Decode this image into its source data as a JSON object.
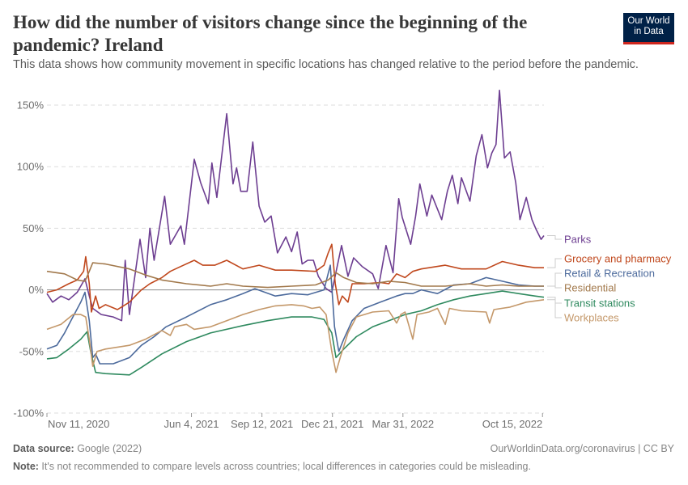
{
  "header": {
    "title": "How did the number of visitors change since the beginning of the pandemic? Ireland",
    "subtitle": "This data shows how community movement in specific locations has changed relative to the period before the pandemic.",
    "logo_line1": "Our World",
    "logo_line2": "in Data"
  },
  "footer": {
    "source_label": "Data source:",
    "source_text": " Google (2022)",
    "url_text": "OurWorldinData.org/coronavirus | CC BY",
    "note_label": "Note:",
    "note_text": " It's not recommended to compare levels across countries; local differences in categories could be misleading."
  },
  "chart_data": {
    "type": "line",
    "title": "How did the number of visitors change since the beginning of the pandemic? Ireland",
    "xlabel": "",
    "ylabel": "",
    "x_unit": "days since start_date",
    "start_date": "2020-11-11",
    "xlim": [
      0,
      705
    ],
    "ylim": [
      -100,
      150
    ],
    "y_ticks": [
      -100,
      -50,
      0,
      50,
      100,
      150
    ],
    "y_tick_labels": [
      "-100%",
      "-50%",
      "0%",
      "50%",
      "100%",
      "150%"
    ],
    "x_ticks": [
      0,
      205,
      305,
      405,
      505,
      703
    ],
    "x_tick_labels": [
      "Nov 11, 2020",
      "Jun 4, 2021",
      "Sep 12, 2021",
      "Dec 21, 2021",
      "Mar 31, 2022",
      "Oct 15, 2022"
    ],
    "grid": true,
    "legend_placement": "right (inline end labels)",
    "series": [
      {
        "name": "Parks",
        "color": "#6d3e91",
        "label_value": 44,
        "points": [
          [
            0,
            -3
          ],
          [
            8,
            -10
          ],
          [
            20,
            -5
          ],
          [
            31,
            -8
          ],
          [
            43,
            -2
          ],
          [
            54,
            9
          ],
          [
            60,
            -5
          ],
          [
            65,
            -15
          ],
          [
            77,
            -20
          ],
          [
            94,
            -22
          ],
          [
            106,
            -25
          ],
          [
            111,
            24
          ],
          [
            117,
            -20
          ],
          [
            132,
            41
          ],
          [
            140,
            10
          ],
          [
            146,
            50
          ],
          [
            152,
            24
          ],
          [
            167,
            76
          ],
          [
            175,
            37
          ],
          [
            190,
            52
          ],
          [
            195,
            37
          ],
          [
            209,
            106
          ],
          [
            218,
            87
          ],
          [
            229,
            70
          ],
          [
            234,
            103
          ],
          [
            241,
            75
          ],
          [
            255,
            143
          ],
          [
            264,
            86
          ],
          [
            269,
            99
          ],
          [
            275,
            80
          ],
          [
            284,
            80
          ],
          [
            292,
            120
          ],
          [
            301,
            68
          ],
          [
            309,
            55
          ],
          [
            318,
            60
          ],
          [
            327,
            30
          ],
          [
            339,
            43
          ],
          [
            347,
            31
          ],
          [
            355,
            47
          ],
          [
            362,
            21
          ],
          [
            370,
            24
          ],
          [
            378,
            24
          ],
          [
            385,
            11
          ],
          [
            396,
            1
          ],
          [
            404,
            -2
          ],
          [
            418,
            36
          ],
          [
            427,
            11
          ],
          [
            435,
            26
          ],
          [
            447,
            19
          ],
          [
            462,
            13
          ],
          [
            470,
            1
          ],
          [
            481,
            36
          ],
          [
            491,
            14
          ],
          [
            499,
            74
          ],
          [
            504,
            59
          ],
          [
            516,
            37
          ],
          [
            523,
            60
          ],
          [
            529,
            86
          ],
          [
            539,
            60
          ],
          [
            546,
            77
          ],
          [
            560,
            57
          ],
          [
            568,
            80
          ],
          [
            575,
            93
          ],
          [
            583,
            70
          ],
          [
            588,
            91
          ],
          [
            600,
            72
          ],
          [
            609,
            109
          ],
          [
            617,
            126
          ],
          [
            625,
            99
          ],
          [
            631,
            111
          ],
          [
            637,
            118
          ],
          [
            642,
            162
          ],
          [
            649,
            107
          ],
          [
            657,
            112
          ],
          [
            665,
            87
          ],
          [
            671,
            57
          ],
          [
            680,
            75
          ],
          [
            688,
            57
          ],
          [
            694,
            49
          ],
          [
            701,
            41
          ],
          [
            705,
            44
          ]
        ]
      },
      {
        "name": "Grocery and pharmacy",
        "color": "#c0481d",
        "label_value": 18,
        "points": [
          [
            0,
            -2
          ],
          [
            14,
            0
          ],
          [
            31,
            5
          ],
          [
            43,
            8
          ],
          [
            52,
            15
          ],
          [
            55,
            27
          ],
          [
            60,
            5
          ],
          [
            63,
            -18
          ],
          [
            69,
            -5
          ],
          [
            74,
            -15
          ],
          [
            83,
            -12
          ],
          [
            100,
            -16
          ],
          [
            117,
            -10
          ],
          [
            134,
            0
          ],
          [
            146,
            5
          ],
          [
            163,
            10
          ],
          [
            175,
            15
          ],
          [
            186,
            18
          ],
          [
            209,
            24
          ],
          [
            221,
            20
          ],
          [
            238,
            20
          ],
          [
            255,
            24
          ],
          [
            278,
            17
          ],
          [
            301,
            20
          ],
          [
            324,
            16
          ],
          [
            347,
            16
          ],
          [
            381,
            15
          ],
          [
            393,
            20
          ],
          [
            399,
            30
          ],
          [
            404,
            37
          ],
          [
            409,
            5
          ],
          [
            414,
            -12
          ],
          [
            419,
            -5
          ],
          [
            427,
            -10
          ],
          [
            433,
            5
          ],
          [
            450,
            5
          ],
          [
            473,
            6
          ],
          [
            485,
            5
          ],
          [
            496,
            13
          ],
          [
            508,
            10
          ],
          [
            519,
            15
          ],
          [
            531,
            17
          ],
          [
            565,
            20
          ],
          [
            588,
            17
          ],
          [
            623,
            17
          ],
          [
            646,
            23
          ],
          [
            669,
            20
          ],
          [
            692,
            18
          ],
          [
            705,
            18
          ]
        ]
      },
      {
        "name": "Retail & Recreation",
        "color": "#4c6a9c",
        "label_value": 3,
        "points": [
          [
            0,
            -48
          ],
          [
            14,
            -45
          ],
          [
            25,
            -35
          ],
          [
            34,
            -25
          ],
          [
            48,
            -10
          ],
          [
            54,
            -2
          ],
          [
            60,
            -25
          ],
          [
            65,
            -55
          ],
          [
            69,
            -52
          ],
          [
            75,
            -60
          ],
          [
            94,
            -60
          ],
          [
            117,
            -55
          ],
          [
            134,
            -45
          ],
          [
            152,
            -38
          ],
          [
            169,
            -30
          ],
          [
            198,
            -22
          ],
          [
            232,
            -12
          ],
          [
            255,
            -8
          ],
          [
            278,
            -3
          ],
          [
            295,
            1
          ],
          [
            324,
            -5
          ],
          [
            347,
            -3
          ],
          [
            370,
            -4
          ],
          [
            393,
            0
          ],
          [
            402,
            20
          ],
          [
            408,
            -30
          ],
          [
            414,
            -50
          ],
          [
            421,
            -40
          ],
          [
            433,
            -25
          ],
          [
            450,
            -15
          ],
          [
            473,
            -10
          ],
          [
            496,
            -5
          ],
          [
            508,
            -3
          ],
          [
            519,
            -3
          ],
          [
            531,
            0
          ],
          [
            554,
            -3
          ],
          [
            577,
            4
          ],
          [
            600,
            5
          ],
          [
            623,
            10
          ],
          [
            646,
            7
          ],
          [
            669,
            4
          ],
          [
            692,
            3
          ],
          [
            705,
            3
          ]
        ]
      },
      {
        "name": "Residential",
        "color": "#a2794c",
        "label_value": 3,
        "points": [
          [
            0,
            15
          ],
          [
            25,
            13
          ],
          [
            43,
            8
          ],
          [
            54,
            7
          ],
          [
            60,
            15
          ],
          [
            65,
            22
          ],
          [
            83,
            21
          ],
          [
            117,
            17
          ],
          [
            140,
            12
          ],
          [
            163,
            8
          ],
          [
            198,
            5
          ],
          [
            232,
            3
          ],
          [
            255,
            5
          ],
          [
            278,
            3
          ],
          [
            313,
            2
          ],
          [
            347,
            3
          ],
          [
            381,
            4
          ],
          [
            399,
            8
          ],
          [
            410,
            14
          ],
          [
            421,
            10
          ],
          [
            439,
            6
          ],
          [
            462,
            5
          ],
          [
            485,
            7
          ],
          [
            508,
            6
          ],
          [
            531,
            3
          ],
          [
            565,
            3
          ],
          [
            600,
            5
          ],
          [
            623,
            3
          ],
          [
            646,
            4
          ],
          [
            669,
            3
          ],
          [
            705,
            3
          ]
        ]
      },
      {
        "name": "Transit stations",
        "color": "#2f8a5f",
        "label_value": -6,
        "points": [
          [
            0,
            -56
          ],
          [
            14,
            -55
          ],
          [
            31,
            -48
          ],
          [
            48,
            -40
          ],
          [
            57,
            -34
          ],
          [
            62,
            -50
          ],
          [
            69,
            -67
          ],
          [
            83,
            -68
          ],
          [
            117,
            -69
          ],
          [
            134,
            -63
          ],
          [
            163,
            -52
          ],
          [
            198,
            -42
          ],
          [
            232,
            -35
          ],
          [
            278,
            -29
          ],
          [
            313,
            -25
          ],
          [
            347,
            -22
          ],
          [
            376,
            -22
          ],
          [
            393,
            -24
          ],
          [
            404,
            -35
          ],
          [
            410,
            -55
          ],
          [
            421,
            -48
          ],
          [
            439,
            -38
          ],
          [
            462,
            -30
          ],
          [
            485,
            -25
          ],
          [
            508,
            -20
          ],
          [
            531,
            -17
          ],
          [
            554,
            -12
          ],
          [
            577,
            -8
          ],
          [
            600,
            -5
          ],
          [
            623,
            -3
          ],
          [
            646,
            -1
          ],
          [
            669,
            -3
          ],
          [
            692,
            -5
          ],
          [
            705,
            -6
          ]
        ]
      },
      {
        "name": "Workplaces",
        "color": "#c4986a",
        "label_value": -8,
        "points": [
          [
            0,
            -32
          ],
          [
            20,
            -28
          ],
          [
            37,
            -20
          ],
          [
            48,
            -20
          ],
          [
            55,
            -22
          ],
          [
            60,
            -40
          ],
          [
            65,
            -62
          ],
          [
            71,
            -50
          ],
          [
            83,
            -48
          ],
          [
            117,
            -45
          ],
          [
            140,
            -40
          ],
          [
            163,
            -33
          ],
          [
            175,
            -37
          ],
          [
            181,
            -30
          ],
          [
            198,
            -28
          ],
          [
            209,
            -32
          ],
          [
            232,
            -30
          ],
          [
            255,
            -25
          ],
          [
            278,
            -20
          ],
          [
            301,
            -16
          ],
          [
            324,
            -13
          ],
          [
            347,
            -12
          ],
          [
            364,
            -13
          ],
          [
            376,
            -15
          ],
          [
            387,
            -14
          ],
          [
            396,
            -20
          ],
          [
            404,
            -50
          ],
          [
            410,
            -67
          ],
          [
            416,
            -55
          ],
          [
            427,
            -35
          ],
          [
            439,
            -22
          ],
          [
            462,
            -18
          ],
          [
            485,
            -17
          ],
          [
            496,
            -27
          ],
          [
            502,
            -20
          ],
          [
            508,
            -18
          ],
          [
            519,
            -40
          ],
          [
            525,
            -20
          ],
          [
            542,
            -18
          ],
          [
            554,
            -15
          ],
          [
            565,
            -28
          ],
          [
            571,
            -15
          ],
          [
            588,
            -17
          ],
          [
            623,
            -18
          ],
          [
            628,
            -27
          ],
          [
            634,
            -16
          ],
          [
            657,
            -14
          ],
          [
            680,
            -10
          ],
          [
            705,
            -8
          ]
        ]
      }
    ]
  }
}
